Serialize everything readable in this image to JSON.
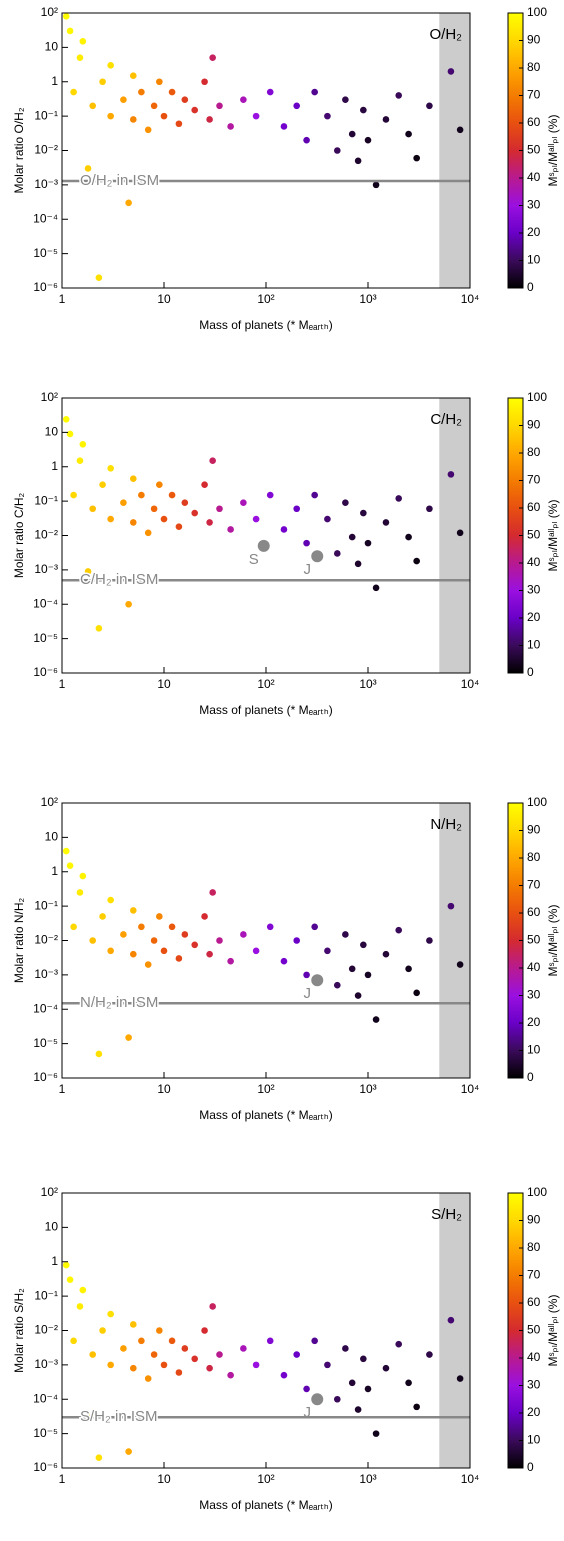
{
  "chart_data": [
    {
      "type": "scatter",
      "title": "O/H₂",
      "ylabel": "Molar ratio O/H₂",
      "xlabel": "Mass of planets (* Mₑₐᵣₜₕ)",
      "log_x": true,
      "log_y": true,
      "xlim": [
        1,
        10000
      ],
      "xticks": [
        1,
        10,
        {
          "value": 100,
          "label": "10²"
        },
        {
          "value": 1000,
          "label": "10³"
        },
        {
          "value": 10000,
          "label": "10⁴"
        }
      ],
      "ylim": [
        1e-06,
        100
      ],
      "yticks": [
        {
          "value": 1e-06,
          "label": "10⁻⁶"
        },
        {
          "value": 1e-05,
          "label": "10⁻⁵"
        },
        {
          "value": 0.0001,
          "label": "10⁻⁴"
        },
        {
          "value": 0.001,
          "label": "10⁻³"
        },
        {
          "value": 0.01,
          "label": "10⁻²"
        },
        {
          "value": 0.1,
          "label": "10⁻¹"
        },
        1,
        10,
        {
          "value": 100,
          "label": "10²"
        }
      ],
      "x": [
        1.2,
        1.5,
        1.3,
        2,
        2.5,
        3,
        3,
        4,
        5,
        5,
        6,
        7,
        8,
        9,
        10,
        12,
        14,
        16,
        20,
        25,
        28,
        4.5,
        2.3,
        1.8,
        35,
        45,
        60,
        80,
        110,
        150,
        200,
        250,
        300,
        400,
        500,
        600,
        700,
        800,
        900,
        1000,
        1200,
        1500,
        2000,
        2500,
        3000,
        4000,
        6500,
        8000,
        30,
        1.1,
        1.6
      ],
      "values": [
        30,
        5,
        0.5,
        0.2,
        1,
        0.1,
        3,
        0.3,
        0.08,
        1.5,
        0.5,
        0.04,
        0.2,
        1,
        0.1,
        0.5,
        0.06,
        0.3,
        0.15,
        1,
        0.08,
        0.0003,
        2e-06,
        0.003,
        0.2,
        0.05,
        0.3,
        0.1,
        0.5,
        0.05,
        0.2,
        0.02,
        0.5,
        0.1,
        0.01,
        0.3,
        0.03,
        0.005,
        0.15,
        0.02,
        0.001,
        0.08,
        0.4,
        0.03,
        0.006,
        0.2,
        2,
        0.04,
        5,
        80,
        15
      ],
      "color_values": [
        98,
        95,
        90,
        85,
        88,
        80,
        92,
        78,
        72,
        85,
        70,
        75,
        65,
        72,
        60,
        62,
        58,
        55,
        52,
        50,
        48,
        80,
        92,
        88,
        40,
        38,
        35,
        30,
        25,
        22,
        20,
        18,
        15,
        12,
        10,
        8,
        6,
        5,
        7,
        4,
        3,
        6,
        10,
        3,
        2,
        8,
        12,
        3,
        45,
        99,
        97
      ],
      "colorbar": {
        "label": "Mˢₚₗ/Mᵃˡˡₚₗ (%)",
        "lim": [
          0,
          100
        ],
        "ticks": [
          0,
          10,
          20,
          30,
          40,
          50,
          60,
          70,
          80,
          90,
          100
        ],
        "colors": [
          "#000000",
          "#3a0a5a",
          "#6a00c8",
          "#9a10e0",
          "#b81a90",
          "#d42a30",
          "#e85010",
          "#f47c00",
          "#ffa800",
          "#ffd800",
          "#ffff00"
        ]
      },
      "shade": [
        5000,
        10000
      ],
      "shade_color": "#cccccc",
      "ism": {
        "label": "O/H₂ in ISM",
        "value": 0.0013
      },
      "ism_color": "#888888",
      "planets": []
    },
    {
      "type": "scatter",
      "title": "C/H₂",
      "ylabel": "Molar ratio C/H₂",
      "xlabel": "Mass of planets (* Mₑₐᵣₜₕ)",
      "log_x": true,
      "log_y": true,
      "xlim": [
        1,
        10000
      ],
      "xticks": [
        1,
        10,
        {
          "value": 100,
          "label": "10²"
        },
        {
          "value": 1000,
          "label": "10³"
        },
        {
          "value": 10000,
          "label": "10⁴"
        }
      ],
      "ylim": [
        1e-06,
        100
      ],
      "yticks": [
        {
          "value": 1e-06,
          "label": "10⁻⁶"
        },
        {
          "value": 1e-05,
          "label": "10⁻⁵"
        },
        {
          "value": 0.0001,
          "label": "10⁻⁴"
        },
        {
          "value": 0.001,
          "label": "10⁻³"
        },
        {
          "value": 0.01,
          "label": "10⁻²"
        },
        {
          "value": 0.1,
          "label": "10⁻¹"
        },
        1,
        10,
        {
          "value": 100,
          "label": "10²"
        }
      ],
      "x": [
        1.2,
        1.5,
        1.3,
        2,
        2.5,
        3,
        3,
        4,
        5,
        5,
        6,
        7,
        8,
        9,
        10,
        12,
        14,
        16,
        20,
        25,
        28,
        4.5,
        2.3,
        1.8,
        35,
        45,
        60,
        80,
        110,
        150,
        200,
        250,
        300,
        400,
        500,
        600,
        700,
        800,
        900,
        1000,
        1200,
        1500,
        2000,
        2500,
        3000,
        4000,
        6500,
        8000,
        30,
        1.1,
        1.6
      ],
      "values": [
        9,
        1.5,
        0.15,
        0.06,
        0.3,
        0.03,
        0.9,
        0.09,
        0.024,
        0.45,
        0.15,
        0.012,
        0.06,
        0.3,
        0.03,
        0.15,
        0.018,
        0.09,
        0.045,
        0.3,
        0.024,
        0.0001,
        2e-05,
        0.0009,
        0.06,
        0.015,
        0.09,
        0.03,
        0.15,
        0.015,
        0.06,
        0.006,
        0.15,
        0.03,
        0.003,
        0.09,
        0.009,
        0.0015,
        0.045,
        0.006,
        0.0003,
        0.024,
        0.12,
        0.009,
        0.0018,
        0.06,
        0.6,
        0.012,
        1.5,
        24,
        4.5
      ],
      "color_values": [
        98,
        95,
        90,
        85,
        88,
        80,
        92,
        78,
        72,
        85,
        70,
        75,
        65,
        72,
        60,
        62,
        58,
        55,
        52,
        50,
        48,
        80,
        92,
        88,
        40,
        38,
        35,
        30,
        25,
        22,
        20,
        18,
        15,
        12,
        10,
        8,
        6,
        5,
        7,
        4,
        3,
        6,
        10,
        3,
        2,
        8,
        12,
        3,
        45,
        99,
        97
      ],
      "colorbar": {
        "label": "Mˢₚₗ/Mᵃˡˡₚₗ (%)",
        "lim": [
          0,
          100
        ],
        "ticks": [
          0,
          10,
          20,
          30,
          40,
          50,
          60,
          70,
          80,
          90,
          100
        ],
        "colors": [
          "#000000",
          "#3a0a5a",
          "#6a00c8",
          "#9a10e0",
          "#b81a90",
          "#d42a30",
          "#e85010",
          "#f47c00",
          "#ffa800",
          "#ffd800",
          "#ffff00"
        ]
      },
      "shade": [
        5000,
        10000
      ],
      "shade_color": "#cccccc",
      "ism": {
        "label": "C/H₂ in ISM",
        "value": 0.0005
      },
      "ism_color": "#888888",
      "planets": [
        {
          "label": "S",
          "x": 95,
          "y": 0.005
        },
        {
          "label": "J",
          "x": 318,
          "y": 0.0025
        }
      ]
    },
    {
      "type": "scatter",
      "title": "N/H₂",
      "ylabel": "Molar ratio N/H₂",
      "xlabel": "Mass of planets (* Mₑₐᵣₜₕ)",
      "log_x": true,
      "log_y": true,
      "xlim": [
        1,
        10000
      ],
      "xticks": [
        1,
        10,
        {
          "value": 100,
          "label": "10²"
        },
        {
          "value": 1000,
          "label": "10³"
        },
        {
          "value": 10000,
          "label": "10⁴"
        }
      ],
      "ylim": [
        1e-06,
        100
      ],
      "yticks": [
        {
          "value": 1e-06,
          "label": "10⁻⁶"
        },
        {
          "value": 1e-05,
          "label": "10⁻⁵"
        },
        {
          "value": 0.0001,
          "label": "10⁻⁴"
        },
        {
          "value": 0.001,
          "label": "10⁻³"
        },
        {
          "value": 0.01,
          "label": "10⁻²"
        },
        {
          "value": 0.1,
          "label": "10⁻¹"
        },
        1,
        10,
        {
          "value": 100,
          "label": "10²"
        }
      ],
      "x": [
        1.2,
        1.5,
        1.3,
        2,
        2.5,
        3,
        3,
        4,
        5,
        5,
        6,
        7,
        8,
        9,
        10,
        12,
        14,
        16,
        20,
        25,
        28,
        4.5,
        2.3,
        1.8,
        35,
        45,
        60,
        80,
        110,
        150,
        200,
        250,
        300,
        400,
        500,
        600,
        700,
        800,
        900,
        1000,
        1200,
        1500,
        2000,
        2500,
        3000,
        4000,
        6500,
        8000,
        30,
        1.1,
        1.6
      ],
      "values": [
        1.5,
        0.25,
        0.025,
        0.01,
        0.05,
        0.005,
        0.15,
        0.015,
        0.004,
        0.075,
        0.025,
        0.002,
        0.01,
        0.05,
        0.005,
        0.025,
        0.003,
        0.015,
        0.0075,
        0.05,
        0.004,
        1.5e-05,
        5e-06,
        0.00015,
        0.01,
        0.0025,
        0.015,
        0.005,
        0.025,
        0.0025,
        0.01,
        0.001,
        0.025,
        0.005,
        0.0005,
        0.015,
        0.0015,
        0.00025,
        0.0075,
        0.001,
        5e-05,
        0.004,
        0.02,
        0.0015,
        0.0003,
        0.01,
        0.1,
        0.002,
        0.25,
        4,
        0.75
      ],
      "color_values": [
        98,
        95,
        90,
        85,
        88,
        80,
        92,
        78,
        72,
        85,
        70,
        75,
        65,
        72,
        60,
        62,
        58,
        55,
        52,
        50,
        48,
        80,
        92,
        88,
        40,
        38,
        35,
        30,
        25,
        22,
        20,
        18,
        15,
        12,
        10,
        8,
        6,
        5,
        7,
        4,
        3,
        6,
        10,
        3,
        2,
        8,
        12,
        3,
        45,
        99,
        97
      ],
      "colorbar": {
        "label": "Mˢₚₗ/Mᵃˡˡₚₗ (%)",
        "lim": [
          0,
          100
        ],
        "ticks": [
          0,
          10,
          20,
          30,
          40,
          50,
          60,
          70,
          80,
          90,
          100
        ],
        "colors": [
          "#000000",
          "#3a0a5a",
          "#6a00c8",
          "#9a10e0",
          "#b81a90",
          "#d42a30",
          "#e85010",
          "#f47c00",
          "#ffa800",
          "#ffd800",
          "#ffff00"
        ]
      },
      "shade": [
        5000,
        10000
      ],
      "shade_color": "#cccccc",
      "ism": {
        "label": "N/H₂ in ISM",
        "value": 0.00015
      },
      "ism_color": "#888888",
      "planets": [
        {
          "label": "J",
          "x": 318,
          "y": 0.0007
        }
      ]
    },
    {
      "type": "scatter",
      "title": "S/H₂",
      "ylabel": "Molar ratio S/H₂",
      "xlabel": "Mass of planets (* Mₑₐᵣₜₕ)",
      "log_x": true,
      "log_y": true,
      "xlim": [
        1,
        10000
      ],
      "xticks": [
        1,
        10,
        {
          "value": 100,
          "label": "10²"
        },
        {
          "value": 1000,
          "label": "10³"
        },
        {
          "value": 10000,
          "label": "10⁴"
        }
      ],
      "ylim": [
        1e-06,
        100
      ],
      "yticks": [
        {
          "value": 1e-06,
          "label": "10⁻⁶"
        },
        {
          "value": 1e-05,
          "label": "10⁻⁵"
        },
        {
          "value": 0.0001,
          "label": "10⁻⁴"
        },
        {
          "value": 0.001,
          "label": "10⁻³"
        },
        {
          "value": 0.01,
          "label": "10⁻²"
        },
        {
          "value": 0.1,
          "label": "10⁻¹"
        },
        1,
        10,
        {
          "value": 100,
          "label": "10²"
        }
      ],
      "x": [
        1.2,
        1.5,
        1.3,
        2,
        2.5,
        3,
        3,
        4,
        5,
        5,
        6,
        7,
        8,
        9,
        10,
        12,
        14,
        16,
        20,
        25,
        28,
        4.5,
        2.3,
        1.8,
        35,
        45,
        60,
        80,
        110,
        150,
        200,
        250,
        300,
        400,
        500,
        600,
        700,
        800,
        900,
        1000,
        1200,
        1500,
        2000,
        2500,
        3000,
        4000,
        6500,
        8000,
        30,
        1.1,
        1.6
      ],
      "values": [
        0.3,
        0.05,
        0.005,
        0.002,
        0.01,
        0.001,
        0.03,
        0.003,
        0.0008,
        0.015,
        0.005,
        0.0004,
        0.002,
        0.01,
        0.001,
        0.005,
        0.0006,
        0.003,
        0.0015,
        0.01,
        0.0008,
        3e-06,
        2e-06,
        3e-05,
        0.002,
        0.0005,
        0.003,
        0.001,
        0.005,
        0.0005,
        0.002,
        0.0002,
        0.005,
        0.001,
        0.0001,
        0.003,
        0.0003,
        5e-05,
        0.0015,
        0.0002,
        1e-05,
        0.0008,
        0.004,
        0.0003,
        6e-05,
        0.002,
        0.02,
        0.0004,
        0.05,
        0.8,
        0.15
      ],
      "color_values": [
        98,
        95,
        90,
        85,
        88,
        80,
        92,
        78,
        72,
        85,
        70,
        75,
        65,
        72,
        60,
        62,
        58,
        55,
        52,
        50,
        48,
        80,
        92,
        88,
        40,
        38,
        35,
        30,
        25,
        22,
        20,
        18,
        15,
        12,
        10,
        8,
        6,
        5,
        7,
        4,
        3,
        6,
        10,
        3,
        2,
        8,
        12,
        3,
        45,
        99,
        97
      ],
      "colorbar": {
        "label": "Mˢₚₗ/Mᵃˡˡₚₗ (%)",
        "lim": [
          0,
          100
        ],
        "ticks": [
          0,
          10,
          20,
          30,
          40,
          50,
          60,
          70,
          80,
          90,
          100
        ],
        "colors": [
          "#000000",
          "#3a0a5a",
          "#6a00c8",
          "#9a10e0",
          "#b81a90",
          "#d42a30",
          "#e85010",
          "#f47c00",
          "#ffa800",
          "#ffd800",
          "#ffff00"
        ]
      },
      "shade": [
        5000,
        10000
      ],
      "shade_color": "#cccccc",
      "ism": {
        "label": "S/H₂ in ISM",
        "value": 3e-05
      },
      "ism_color": "#888888",
      "planets": [
        {
          "label": "J",
          "x": 318,
          "y": 0.0001
        }
      ]
    }
  ]
}
